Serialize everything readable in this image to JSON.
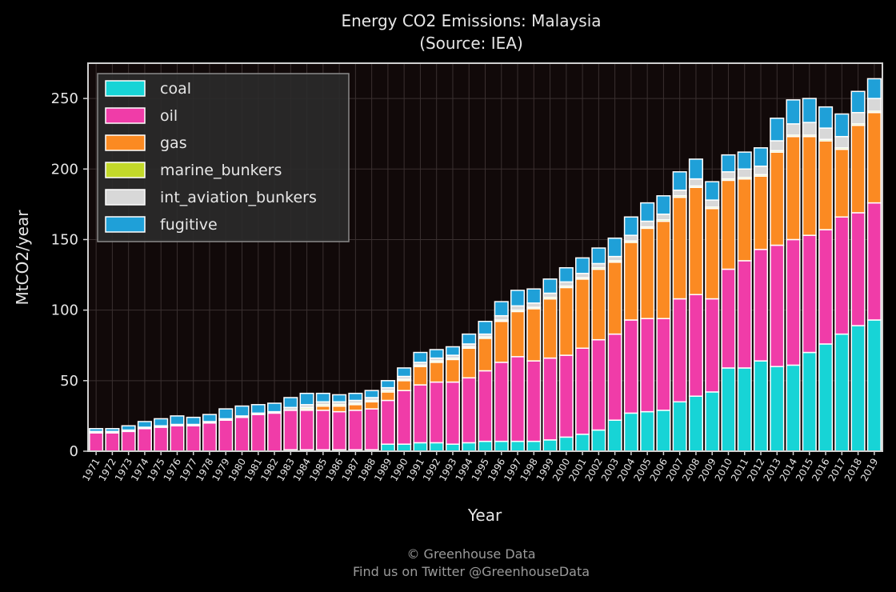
{
  "title_line1": "Energy CO2 Emissions: Malaysia",
  "title_line2": "(Source: IEA)",
  "footer_line1": "© Greenhouse Data",
  "footer_line2": "Find us on Twitter @GreenhouseData",
  "chart_data": {
    "type": "bar",
    "stacked": true,
    "xlabel": "Year",
    "ylabel": "MtCO2/year",
    "ylim": [
      0,
      275
    ],
    "yticks": [
      0,
      50,
      100,
      150,
      200,
      250
    ],
    "grid": true,
    "legend_position": "top-left",
    "categories": [
      "1971",
      "1972",
      "1973",
      "1974",
      "1975",
      "1976",
      "1977",
      "1978",
      "1979",
      "1980",
      "1981",
      "1982",
      "1983",
      "1984",
      "1985",
      "1986",
      "1987",
      "1988",
      "1989",
      "1990",
      "1991",
      "1992",
      "1993",
      "1994",
      "1995",
      "1996",
      "1997",
      "1998",
      "1999",
      "2000",
      "2001",
      "2002",
      "2003",
      "2004",
      "2005",
      "2006",
      "2007",
      "2008",
      "2009",
      "2010",
      "2011",
      "2012",
      "2013",
      "2014",
      "2015",
      "2016",
      "2017",
      "2018",
      "2019"
    ],
    "series": [
      {
        "name": "coal",
        "color": "#17d4d6",
        "values": [
          0,
          0,
          0,
          0,
          0,
          0,
          0,
          0,
          0,
          0,
          0,
          0,
          1,
          1,
          1,
          1,
          1,
          1,
          5,
          5,
          6,
          6,
          5,
          6,
          7,
          7,
          7,
          7,
          8,
          10,
          12,
          15,
          22,
          27,
          28,
          29,
          35,
          39,
          42,
          59,
          59,
          64,
          60,
          61,
          70,
          76,
          83,
          89,
          93
        ]
      },
      {
        "name": "oil",
        "color": "#f03ca8",
        "values": [
          13,
          13,
          14,
          16,
          17,
          18,
          18,
          20,
          22,
          24,
          26,
          27,
          28,
          28,
          28,
          27,
          28,
          29,
          31,
          38,
          41,
          43,
          44,
          46,
          50,
          56,
          60,
          57,
          58,
          58,
          61,
          64,
          61,
          66,
          66,
          65,
          73,
          72,
          66,
          70,
          76,
          79,
          86,
          89,
          83,
          81,
          83,
          80,
          83
        ]
      },
      {
        "name": "gas",
        "color": "#fb8a22",
        "values": [
          0,
          0,
          0,
          0,
          0,
          0,
          0,
          0,
          0,
          0,
          0,
          0,
          0,
          1,
          3,
          4,
          4,
          5,
          6,
          7,
          13,
          14,
          16,
          21,
          23,
          29,
          32,
          37,
          42,
          48,
          49,
          50,
          51,
          55,
          64,
          69,
          72,
          76,
          64,
          63,
          58,
          52,
          66,
          73,
          70,
          63,
          48,
          62,
          64
        ]
      },
      {
        "name": "marine_bunkers",
        "color": "#c3d92a",
        "values": [
          0,
          0,
          0,
          0,
          0,
          0,
          0,
          0,
          0,
          0,
          0,
          0,
          0,
          1,
          1,
          1,
          1,
          1,
          1,
          1,
          1,
          1,
          1,
          1,
          1,
          1,
          1,
          1,
          1,
          1,
          1,
          1,
          1,
          1,
          1,
          1,
          1,
          1,
          1,
          1,
          1,
          1,
          1,
          1,
          1,
          1,
          1,
          1,
          1
        ]
      },
      {
        "name": "int_aviation_bunkers",
        "color": "#d8d8d8",
        "values": [
          1,
          1,
          1,
          1,
          1,
          1,
          1,
          1,
          1,
          1,
          1,
          1,
          2,
          2,
          2,
          2,
          2,
          2,
          2,
          2,
          2,
          2,
          2,
          2,
          2,
          3,
          3,
          3,
          3,
          3,
          3,
          3,
          3,
          4,
          4,
          4,
          4,
          5,
          5,
          5,
          6,
          6,
          7,
          8,
          9,
          8,
          8,
          8,
          9
        ]
      },
      {
        "name": "fugitive",
        "color": "#1fa0d8",
        "values": [
          2,
          2,
          3,
          4,
          5,
          6,
          5,
          5,
          7,
          7,
          6,
          6,
          7,
          8,
          6,
          5,
          5,
          5,
          5,
          6,
          7,
          6,
          6,
          7,
          9,
          10,
          11,
          10,
          10,
          10,
          11,
          11,
          13,
          13,
          13,
          13,
          13,
          14,
          13,
          12,
          12,
          13,
          16,
          17,
          17,
          15,
          16,
          15,
          14
        ]
      }
    ]
  }
}
